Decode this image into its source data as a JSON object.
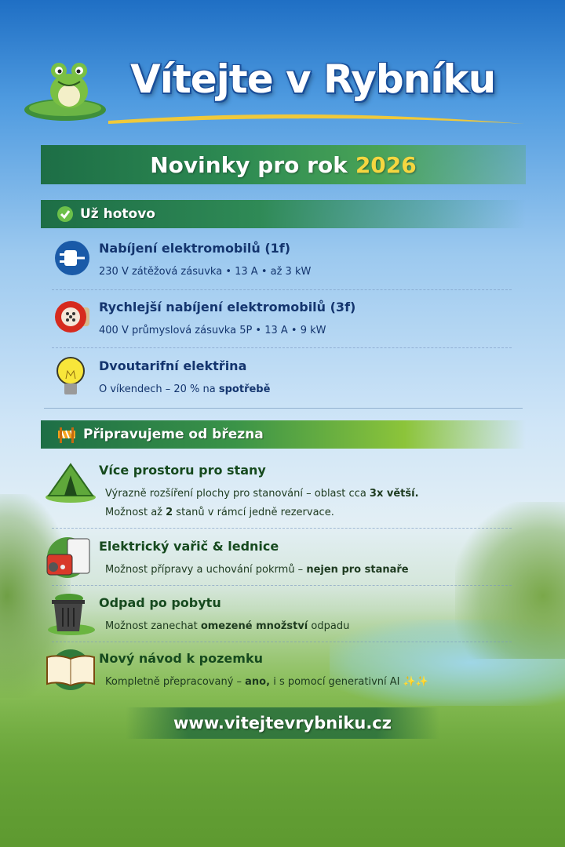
{
  "header": {
    "title": "Vítejte v Rybníku"
  },
  "banner": {
    "text": "Novinky pro rok",
    "year": "2026"
  },
  "done": {
    "heading": "Už hotovo",
    "items": [
      {
        "icon": "ev-plug-icon",
        "title": "Nabíjení elektromobilů (1f)",
        "desc": "230 V zátěžová zásuvka • 13 A • až 3 kW"
      },
      {
        "icon": "industrial-socket-icon",
        "title": "Rychlejší nabíjení elektromobilů (3f)",
        "desc": "400 V průmyslová zásuvka 5P • 13 A • 9 kW"
      },
      {
        "icon": "light-bulb-icon",
        "title": "Dvoutarifní elektřina",
        "desc_a": "O víkendech – 20 % na ",
        "desc_b": "spotřebě"
      }
    ]
  },
  "upcoming": {
    "heading": "Připravujeme od března",
    "items": [
      {
        "icon": "tent-icon",
        "title": "Více prostoru pro stany",
        "l1a": "Výrazně rozšíření plochy pro stanování – oblast cca ",
        "l1b": "3x větší.",
        "l2a": "Možnost až ",
        "l2b": "2",
        "l2c": " stanů v rámcí jedně rezervace."
      },
      {
        "icon": "stove-fridge-icon",
        "title": "Elektrický vařič & lednice",
        "da": "Možnost přípravy a uchování pokrmů – ",
        "db": "nejen pro stanaře"
      },
      {
        "icon": "trash-bin-icon",
        "title": "Odpad po pobytu",
        "da": "Možnost zanechat ",
        "db": "omezené množství",
        "dc": " odpadu"
      },
      {
        "icon": "book-icon",
        "title": "Nový návod k pozemku",
        "da": "Kompletně přepracovaný – ",
        "db": "ano,",
        "dc": " i s pomocí generativní AI ",
        "dd": "✨✨"
      }
    ]
  },
  "footer": {
    "url": "www.vitejtevrybniku.cz"
  },
  "colors": {
    "dark_green": "#1d6e46",
    "navy": "#14356e",
    "gold": "#f5d640"
  }
}
